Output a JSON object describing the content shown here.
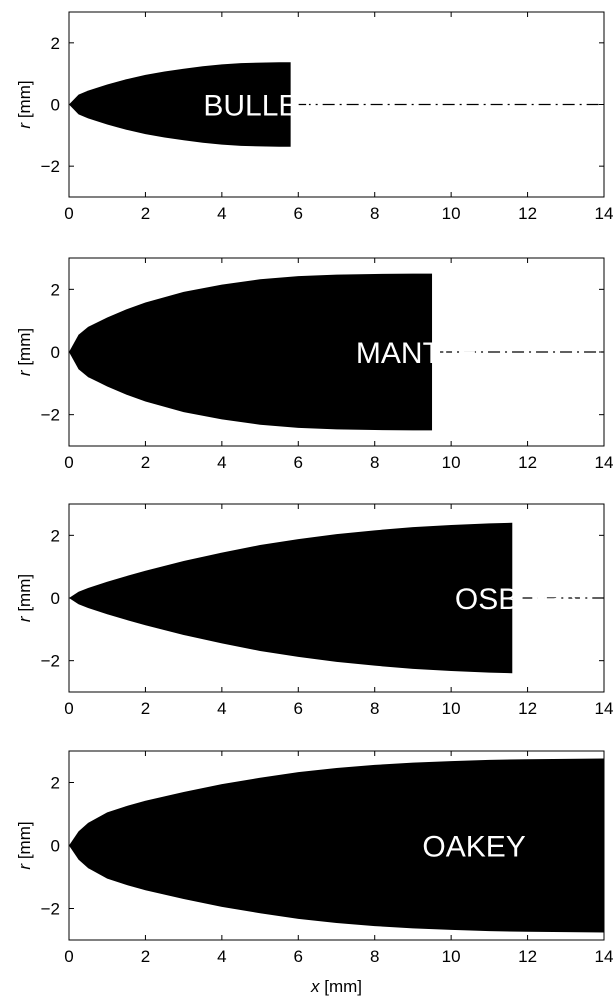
{
  "chart_data": [
    {
      "type": "area",
      "label": "BULLET",
      "x_max_body": 5.8,
      "profile": {
        "x": [
          0,
          0.25,
          0.5,
          1,
          1.5,
          2,
          2.5,
          3,
          3.5,
          4,
          4.5,
          5,
          5.5,
          5.8
        ],
        "r": [
          0,
          0.32,
          0.45,
          0.65,
          0.82,
          0.96,
          1.07,
          1.16,
          1.24,
          1.3,
          1.34,
          1.36,
          1.37,
          1.37
        ]
      },
      "xlim": [
        0,
        14
      ],
      "ylim": [
        -3,
        3
      ],
      "xticks": [
        "0",
        "2",
        "4",
        "6",
        "8",
        "10",
        "12",
        "14"
      ],
      "yticks": [
        "2",
        "0",
        "−2"
      ],
      "ylabel": "r",
      "ylabel_unit": "[mm]"
    },
    {
      "type": "area",
      "label": "MANTLE",
      "x_max_body": 9.5,
      "profile": {
        "x": [
          0,
          0.25,
          0.5,
          1,
          1.5,
          2,
          3,
          4,
          5,
          6,
          7,
          8,
          9,
          9.5
        ],
        "r": [
          0,
          0.55,
          0.8,
          1.1,
          1.36,
          1.58,
          1.92,
          2.15,
          2.32,
          2.42,
          2.47,
          2.49,
          2.5,
          2.5
        ]
      },
      "xlim": [
        0,
        14
      ],
      "ylim": [
        -3,
        3
      ],
      "xticks": [
        "0",
        "2",
        "4",
        "6",
        "8",
        "10",
        "12",
        "14"
      ],
      "yticks": [
        "2",
        "0",
        "−2"
      ],
      "ylabel": "r",
      "ylabel_unit": "[mm]"
    },
    {
      "type": "area",
      "label": "OSBORN",
      "x_max_body": 11.6,
      "profile": {
        "x": [
          0,
          0.25,
          0.5,
          1,
          1.5,
          2,
          3,
          4,
          5,
          6,
          7,
          8,
          9,
          10,
          11,
          11.6
        ],
        "r": [
          0,
          0.2,
          0.32,
          0.52,
          0.7,
          0.87,
          1.18,
          1.45,
          1.69,
          1.88,
          2.04,
          2.16,
          2.26,
          2.33,
          2.38,
          2.4
        ]
      },
      "xlim": [
        0,
        14
      ],
      "ylim": [
        -3,
        3
      ],
      "xticks": [
        "0",
        "2",
        "4",
        "6",
        "8",
        "10",
        "12",
        "14"
      ],
      "yticks": [
        "2",
        "0",
        "−2"
      ],
      "ylabel": "r",
      "ylabel_unit": "[mm]"
    },
    {
      "type": "area",
      "label": "OAKEY",
      "x_max_body": 14,
      "profile": {
        "x": [
          0,
          0.25,
          0.5,
          1,
          1.5,
          2,
          3,
          4,
          5,
          6,
          7,
          8,
          9,
          10,
          11,
          12,
          13,
          14
        ],
        "r": [
          0,
          0.45,
          0.72,
          1.05,
          1.25,
          1.42,
          1.7,
          1.95,
          2.15,
          2.33,
          2.46,
          2.56,
          2.63,
          2.68,
          2.72,
          2.74,
          2.75,
          2.76
        ]
      },
      "xlim": [
        0,
        14
      ],
      "ylim": [
        -3,
        3
      ],
      "xticks": [
        "0",
        "2",
        "4",
        "6",
        "8",
        "10",
        "12",
        "14"
      ],
      "yticks": [
        "2",
        "0",
        "−2"
      ],
      "ylabel": "r",
      "ylabel_unit": "[mm]",
      "xlabel": "x",
      "xlabel_unit": "[mm]"
    }
  ]
}
